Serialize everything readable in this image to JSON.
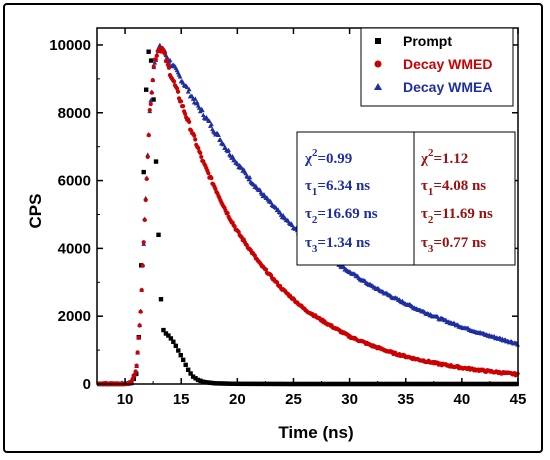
{
  "chart_data": {
    "type": "scatter",
    "xlabel": "Time (ns)",
    "ylabel": "CPS",
    "xlim": [
      7.5,
      45
    ],
    "ylim": [
      0,
      10500
    ],
    "x_ticks": [
      "10",
      "15",
      "20",
      "25",
      "30",
      "35",
      "40",
      "45"
    ],
    "x_tick_values": [
      10,
      15,
      20,
      25,
      30,
      35,
      40,
      45
    ],
    "y_ticks": [
      "0",
      "2000",
      "4000",
      "6000",
      "8000",
      "10000"
    ],
    "y_tick_values": [
      0,
      2000,
      4000,
      6000,
      8000,
      10000
    ],
    "legend_position": "top-right",
    "series": [
      {
        "name": "Prompt",
        "marker": "square",
        "color": "#000000",
        "x": [
          8,
          9,
          10,
          10.6,
          11,
          11.2,
          11.4,
          11.6,
          11.8,
          12.0,
          12.2,
          12.4,
          12.6,
          12.8,
          13.0,
          13.2,
          13.4,
          13.6,
          13.8,
          14.0,
          14.4,
          14.8,
          15.2,
          15.6,
          16.0,
          16.5,
          17,
          18,
          20,
          25,
          30,
          35,
          40,
          45
        ],
        "y": [
          0,
          0,
          0,
          30,
          300,
          1200,
          3000,
          5500,
          8000,
          9700,
          9900,
          9300,
          8000,
          6200,
          4200,
          2500,
          1600,
          1500,
          1450,
          1380,
          1200,
          950,
          700,
          430,
          230,
          120,
          60,
          20,
          5,
          0,
          0,
          0,
          0,
          0
        ]
      },
      {
        "name": "Decay WMED",
        "marker": "circle",
        "color": "#cc0000",
        "x": [
          8,
          10,
          10.5,
          11.0,
          11.4,
          11.8,
          12.2,
          12.6,
          13.0,
          13.3,
          14,
          15,
          16,
          17,
          18,
          19,
          20,
          22,
          24,
          26,
          28,
          30,
          32,
          34,
          36,
          38,
          40,
          42,
          45
        ],
        "y": [
          0,
          0,
          30,
          400,
          2200,
          5200,
          8000,
          9500,
          9900,
          9900,
          9200,
          8300,
          7400,
          6500,
          5800,
          5100,
          4500,
          3550,
          2800,
          2200,
          1780,
          1400,
          1130,
          900,
          730,
          590,
          480,
          390,
          280
        ]
      },
      {
        "name": "Decay WMEA",
        "marker": "triangle",
        "color": "#1f2fa0",
        "x": [
          8,
          10,
          10.5,
          11.0,
          11.4,
          11.8,
          12.2,
          12.6,
          13.0,
          13.3,
          14,
          15,
          16,
          17,
          18,
          19,
          20,
          22,
          24,
          26,
          28,
          30,
          32,
          34,
          36,
          38,
          40,
          42,
          45
        ],
        "y": [
          0,
          0,
          30,
          400,
          2200,
          5200,
          8000,
          9500,
          9900,
          9900,
          9500,
          9000,
          8450,
          7950,
          7450,
          6950,
          6500,
          5680,
          4950,
          4300,
          3780,
          3300,
          2880,
          2530,
          2210,
          1930,
          1680,
          1460,
          1180
        ]
      }
    ],
    "annotations": {
      "blue": {
        "chi2_label": "χ",
        "chi2_sup": "2",
        "chi2_value": "=0.99",
        "tau1_sub": "1",
        "tau1_value": "=6.34 ns",
        "tau2_sub": "2",
        "tau2_value": "=16.69 ns",
        "tau3_sub": "3",
        "tau3_value": "=1.34 ns",
        "color": "#1f2fa0"
      },
      "red": {
        "chi2_label": "χ",
        "chi2_sup": "2",
        "chi2_value": "=1.12",
        "tau1_sub": "1",
        "tau1_value": "=4.08 ns",
        "tau2_sub": "2",
        "tau2_value": "=11.69 ns",
        "tau3_sub": "3",
        "tau3_value": "=0.77 ns",
        "color": "#9a1010"
      },
      "tau_symbol": "τ"
    }
  }
}
